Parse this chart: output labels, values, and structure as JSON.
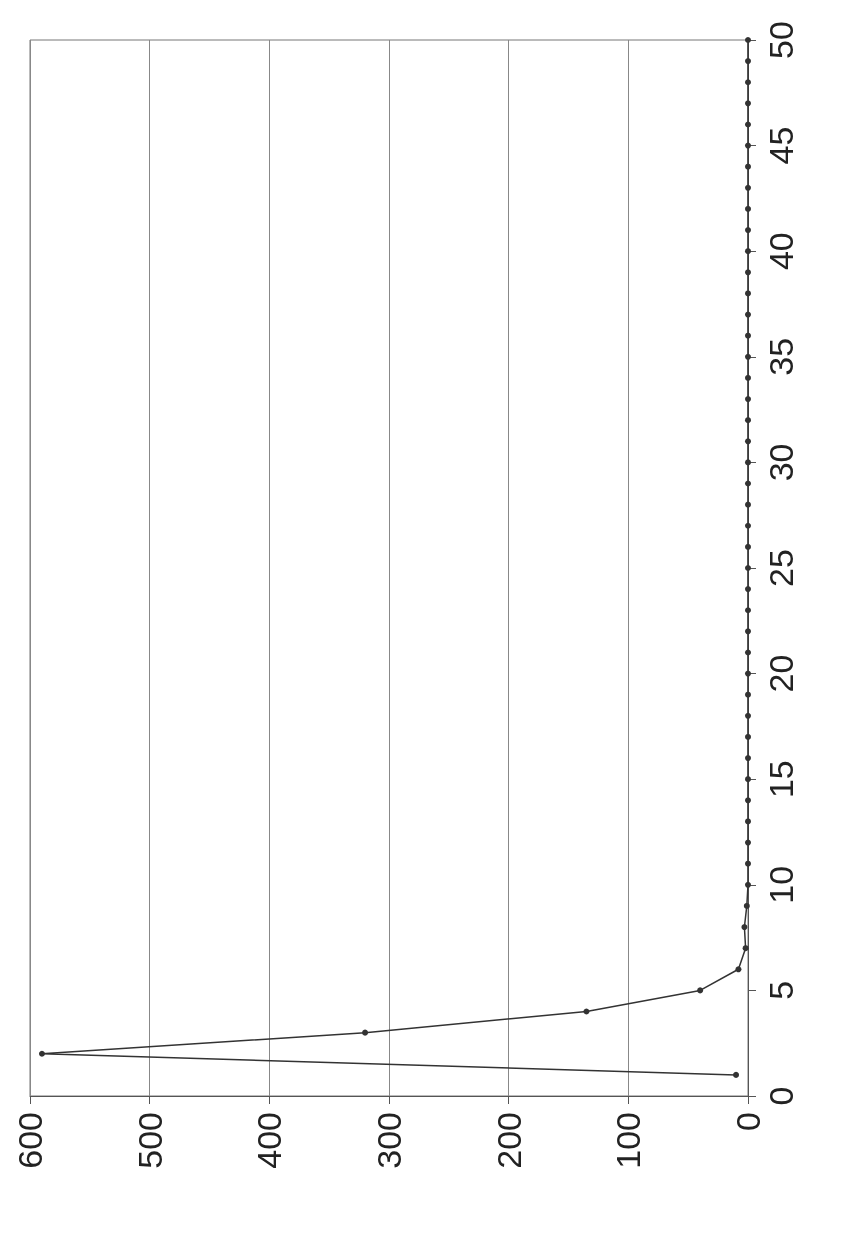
{
  "chart_data": {
    "type": "line",
    "x": [
      10,
      590,
      320,
      135,
      40,
      8,
      2,
      3,
      1,
      0,
      0,
      0,
      0,
      0,
      0,
      0,
      0,
      0,
      0,
      0,
      0,
      0,
      0,
      0,
      0,
      0,
      0,
      0,
      0,
      0,
      0,
      0,
      0,
      0,
      0,
      0,
      0,
      0,
      0,
      0,
      0,
      0,
      0,
      0,
      0,
      0,
      0,
      0,
      0,
      0
    ],
    "series": [
      {
        "color": "#333333",
        "values": [
          1,
          2,
          3,
          4,
          5,
          6,
          7,
          8,
          9,
          10,
          11,
          12,
          13,
          14,
          15,
          16,
          17,
          18,
          19,
          20,
          21,
          22,
          23,
          24,
          25,
          26,
          27,
          28,
          29,
          30,
          31,
          32,
          33,
          34,
          35,
          36,
          37,
          38,
          39,
          40,
          41,
          42,
          43,
          44,
          45,
          46,
          47,
          48,
          49,
          50
        ]
      }
    ],
    "xlim": [
      600,
      0
    ],
    "xticks": [
      0,
      100,
      200,
      300,
      400,
      500,
      600
    ],
    "ylim": [
      0,
      50
    ],
    "yticks": [
      0,
      5,
      10,
      15,
      20,
      25,
      30,
      35,
      40,
      45,
      50
    ],
    "grid": "x",
    "marker": "circle",
    "line_style": "solid"
  }
}
